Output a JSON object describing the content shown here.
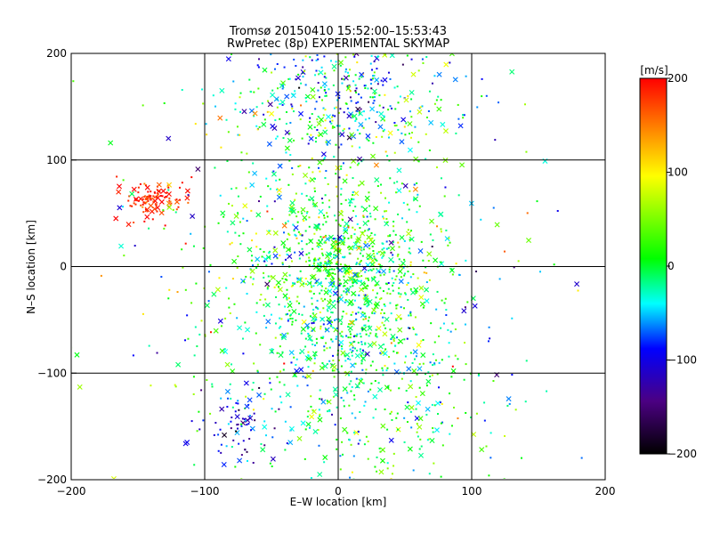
{
  "chart_data": {
    "type": "scatter",
    "title": "Tromsø 20150410 15:52:00–15:53:43",
    "subtitle": "RwPretec (8p) EXPERIMENTAL SKYMAP",
    "xlabel": "E–W location [km]",
    "ylabel": "N–S location [km]",
    "xlim": [
      -200,
      200
    ],
    "ylim": [
      -200,
      200
    ],
    "x_ticks": [
      -200,
      -100,
      0,
      100,
      200
    ],
    "y_ticks": [
      -200,
      -100,
      0,
      100,
      200
    ],
    "grid": true,
    "markers": [
      "x",
      "dot"
    ],
    "colorbar": {
      "label": "[m/s]",
      "range": [
        -200,
        200
      ],
      "ticks": [
        200,
        100,
        0,
        -100,
        -200
      ],
      "colors": [
        "#000000",
        "#4b0082",
        "#0000ff",
        "#00ffff",
        "#00ff00",
        "#ffff00",
        "#ff8000",
        "#ff0000"
      ]
    },
    "series": [
      {
        "clusters": [
          {
            "cx": 0,
            "cy": 0,
            "sx": 35,
            "sy": 35,
            "n": 700,
            "v": 10,
            "vs": 45
          },
          {
            "cx": 5,
            "cy": -80,
            "sx": 40,
            "sy": 40,
            "n": 450,
            "v": -15,
            "vs": 40
          },
          {
            "cx": -10,
            "cy": 160,
            "sx": 40,
            "sy": 30,
            "n": 300,
            "v": -40,
            "vs": 60
          },
          {
            "cx": -140,
            "cy": 62,
            "sx": 12,
            "sy": 8,
            "n": 110,
            "v": 185,
            "vs": 15
          },
          {
            "cx": -75,
            "cy": -150,
            "sx": 15,
            "sy": 18,
            "n": 70,
            "v": -100,
            "vs": 40
          },
          {
            "cx": 30,
            "cy": 150,
            "sx": 40,
            "sy": 40,
            "n": 120,
            "v": 10,
            "vs": 60
          },
          {
            "cx": -20,
            "cy": 70,
            "sx": 45,
            "sy": 45,
            "n": 140,
            "v": 20,
            "vs": 60
          },
          {
            "cx": 50,
            "cy": -150,
            "sx": 40,
            "sy": 40,
            "n": 140,
            "v": 20,
            "vs": 50
          },
          {
            "cx": 60,
            "cy": 0,
            "sx": 70,
            "sy": 110,
            "n": 160,
            "v": 0,
            "vs": 80
          },
          {
            "cx": -80,
            "cy": -20,
            "sx": 60,
            "sy": 120,
            "n": 160,
            "v": 20,
            "vs": 80
          }
        ]
      }
    ]
  }
}
